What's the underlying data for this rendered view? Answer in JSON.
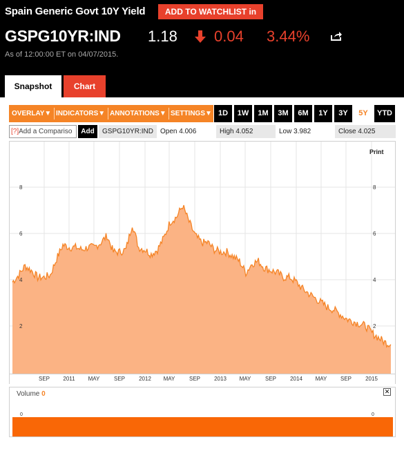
{
  "header": {
    "title": "Spain Generic Govt 10Y Yield",
    "watchlist_label": "ADD TO WATCHLIST in",
    "ticker": "GSPG10YR:IND",
    "price": "1.18",
    "change": "0.04",
    "change_pct": "3.44%",
    "as_of": "As of 12:00:00 ET on 04/07/2015.",
    "down_color": "#e8412c"
  },
  "tabs": [
    {
      "label": "Snapshot",
      "active": false
    },
    {
      "label": "Chart",
      "active": true
    }
  ],
  "toolbar": {
    "menus": [
      "OVERLAY▼",
      "INDICATORS▼",
      "ANNOTATIONS▼",
      "SETTINGS▼"
    ],
    "ranges": [
      "1D",
      "1W",
      "1M",
      "3M",
      "6M",
      "1Y",
      "3Y",
      "5Y",
      "YTD"
    ],
    "active_range": "5Y"
  },
  "infobar": {
    "compare_q": "[?]",
    "compare_placeholder": "Add a Compariso",
    "add_label": "Add",
    "symbol": "GSPG10YR:IND",
    "open_label": "Open",
    "open_value": "4.006",
    "high_label": "High",
    "high_value": "4.052",
    "low_label": "Low",
    "low_value": "3.982",
    "close_label": "Close",
    "close_value": "4.025"
  },
  "print_label": "Print",
  "volume": {
    "label": "Volume",
    "value": "0",
    "close_icon": "✕",
    "left_axis": "0",
    "right_axis": "0"
  },
  "chart_data": {
    "type": "area",
    "color": "#f58426",
    "fill": "#fbb384",
    "ylim": [
      0,
      9
    ],
    "y_ticks": [
      "2",
      "4",
      "6",
      "8"
    ],
    "x_ticks": [
      "SEP",
      "2011",
      "MAY",
      "SEP",
      "2012",
      "MAY",
      "SEP",
      "2013",
      "MAY",
      "SEP",
      "2014",
      "MAY",
      "SEP",
      "2015"
    ],
    "x": [
      "2010-04",
      "2010-05",
      "2010-06",
      "2010-07",
      "2010-08",
      "2010-09",
      "2010-10",
      "2010-11",
      "2010-12",
      "2011-01",
      "2011-02",
      "2011-03",
      "2011-04",
      "2011-05",
      "2011-06",
      "2011-07",
      "2011-08",
      "2011-09",
      "2011-10",
      "2011-11",
      "2011-12",
      "2012-01",
      "2012-02",
      "2012-03",
      "2012-04",
      "2012-05",
      "2012-06",
      "2012-07",
      "2012-08",
      "2012-09",
      "2012-10",
      "2012-11",
      "2012-12",
      "2013-01",
      "2013-02",
      "2013-03",
      "2013-04",
      "2013-05",
      "2013-06",
      "2013-07",
      "2013-08",
      "2013-09",
      "2013-10",
      "2013-11",
      "2013-12",
      "2014-01",
      "2014-02",
      "2014-03",
      "2014-04",
      "2014-05",
      "2014-06",
      "2014-07",
      "2014-08",
      "2014-09",
      "2014-10",
      "2014-11",
      "2014-12",
      "2015-01",
      "2015-02",
      "2015-03",
      "2015-04"
    ],
    "values": [
      3.9,
      4.2,
      4.6,
      4.4,
      4.1,
      4.1,
      4.2,
      4.9,
      5.5,
      5.4,
      5.4,
      5.3,
      5.4,
      5.4,
      5.6,
      5.9,
      5.2,
      5.2,
      5.3,
      6.4,
      5.4,
      5.3,
      5.1,
      5.3,
      5.8,
      6.5,
      6.7,
      7.2,
      6.5,
      5.9,
      5.6,
      5.6,
      5.3,
      5.2,
      5.2,
      5.0,
      4.8,
      4.3,
      4.7,
      4.8,
      4.5,
      4.4,
      4.3,
      4.1,
      4.1,
      3.9,
      3.6,
      3.4,
      3.2,
      3.0,
      2.8,
      2.7,
      2.5,
      2.3,
      2.2,
      2.1,
      2.0,
      1.7,
      1.5,
      1.3,
      1.2
    ]
  }
}
